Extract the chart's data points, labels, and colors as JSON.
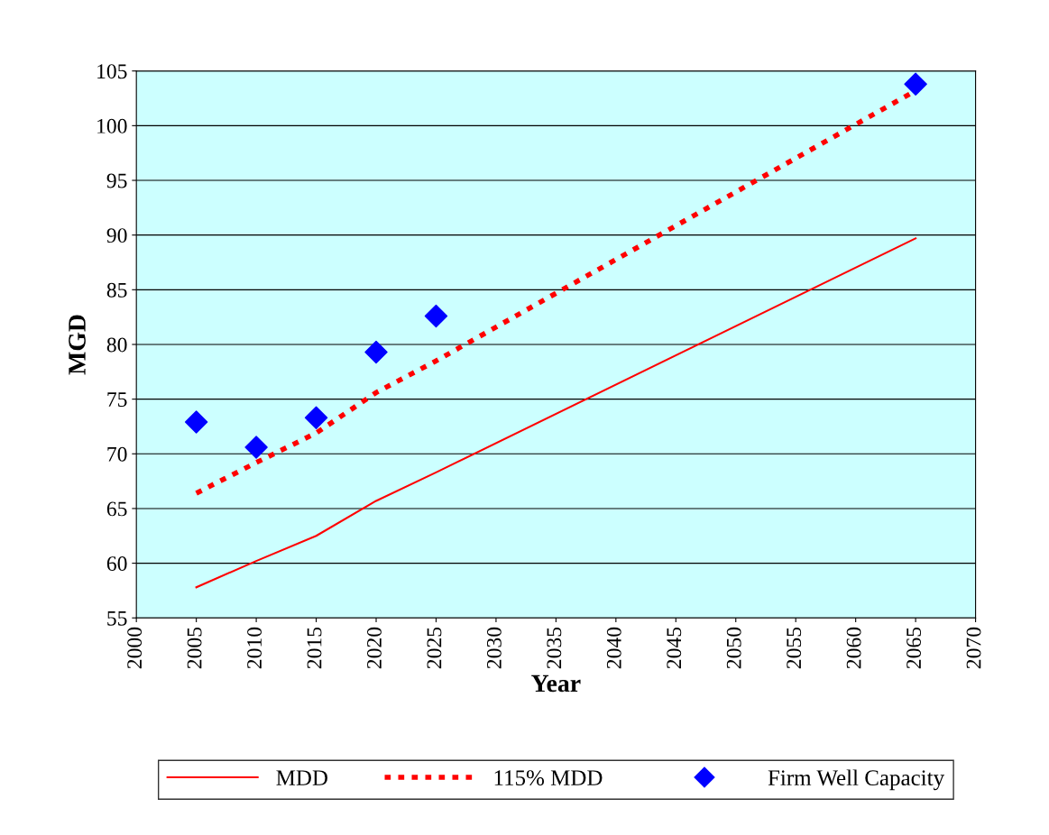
{
  "chart_data": {
    "type": "line",
    "xlabel": "Year",
    "ylabel": "MGD",
    "x": [
      2005,
      2010,
      2015,
      2020,
      2025,
      2065
    ],
    "series": [
      {
        "name": "MDD",
        "color": "#ff0000",
        "line_style": "solid",
        "marker": "none",
        "values": [
          57.8,
          60.2,
          62.5,
          65.7,
          68.3,
          89.7
        ]
      },
      {
        "name": "115% MDD",
        "color": "#ff0000",
        "line_style": "dotted",
        "marker": "none",
        "values": [
          66.4,
          69.2,
          71.9,
          75.6,
          78.5,
          103.2
        ]
      },
      {
        "name": "Firm Well Capacity",
        "type": "scatter",
        "color": "#0000ff",
        "marker": "diamond",
        "values": [
          72.9,
          70.6,
          73.3,
          79.3,
          82.6,
          103.8
        ]
      }
    ],
    "xlim": [
      2000,
      2070
    ],
    "xticks": [
      2000,
      2005,
      2010,
      2015,
      2020,
      2025,
      2030,
      2035,
      2040,
      2045,
      2050,
      2055,
      2060,
      2065,
      2070
    ],
    "ylim": [
      55,
      105
    ],
    "yticks": [
      55,
      60,
      65,
      70,
      75,
      80,
      85,
      90,
      95,
      100,
      105
    ],
    "grid": "y",
    "legend": "bottom"
  }
}
